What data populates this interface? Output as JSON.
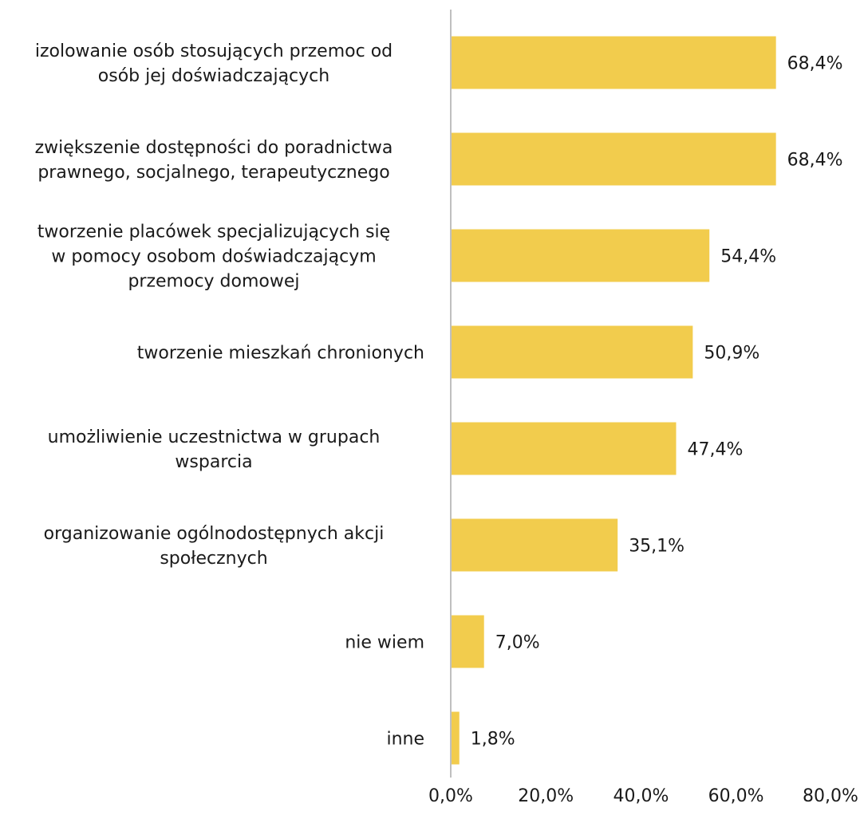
{
  "chart_data": {
    "type": "bar",
    "orientation": "horizontal",
    "categories": [
      [
        "izolowanie osób stosujących przemoc od",
        "osób jej doświadczających"
      ],
      [
        "zwiększenie dostępności do poradnictwa",
        "prawnego, socjalnego, terapeutycznego"
      ],
      [
        "tworzenie placówek specjalizujących się",
        "w pomocy osobom doświadczającym",
        "przemocy domowej"
      ],
      [
        "tworzenie mieszkań chronionych"
      ],
      [
        "umożliwienie uczestnictwa w grupach",
        "wsparcia"
      ],
      [
        "organizowanie ogólnodostępnych akcji",
        "społecznych"
      ],
      [
        "nie wiem"
      ],
      [
        "inne"
      ]
    ],
    "values": [
      68.4,
      68.4,
      54.4,
      50.9,
      47.4,
      35.1,
      7.0,
      1.8
    ],
    "data_labels": [
      "68,4%",
      "68,4%",
      "54,4%",
      "50,9%",
      "47,4%",
      "35,1%",
      "7,0%",
      "1,8%"
    ],
    "xlim": [
      0,
      80
    ],
    "xticks": [
      0,
      20,
      40,
      60,
      80
    ],
    "xtick_labels": [
      "0,0%",
      "20,0%",
      "40,0%",
      "60,0%",
      "80,0%"
    ],
    "title": "",
    "xlabel": "",
    "ylabel": "",
    "grid": false,
    "legend": "none",
    "bar_color": "#F2CC4D",
    "axis_color": "#BFBFBF"
  }
}
